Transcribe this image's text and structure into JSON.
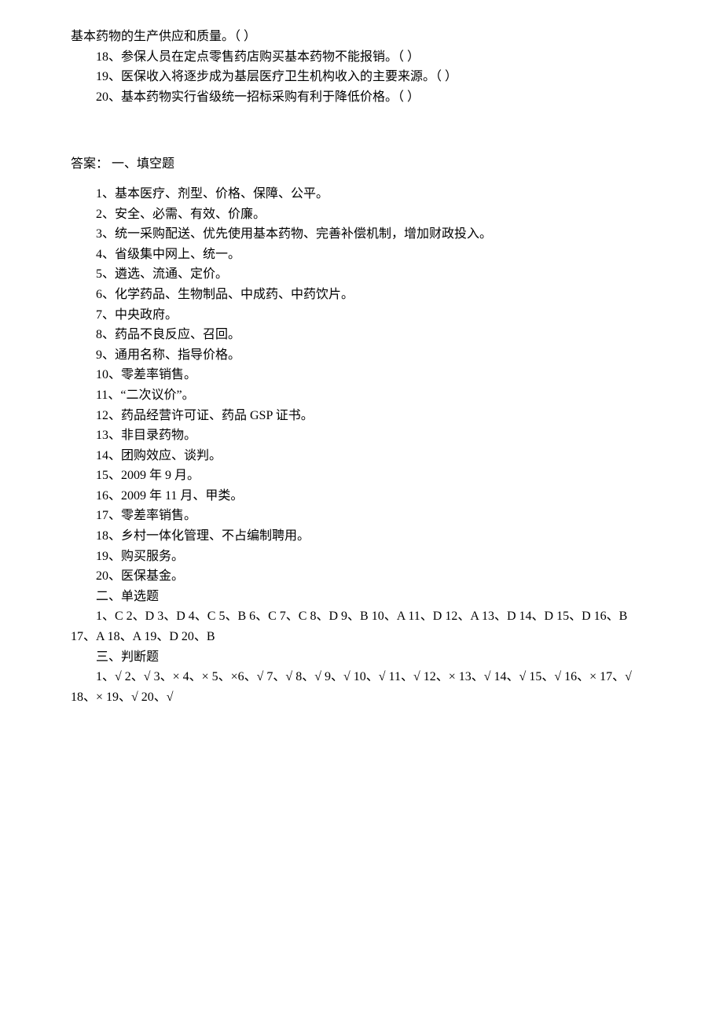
{
  "top": {
    "l0": "基本药物的生产供应和质量。（    ）",
    "l1": "18、参保人员在定点零售药店购买基本药物不能报销。（    ）",
    "l2": "19、医保收入将逐步成为基层医疗卫生机构收入的主要来源。（    ）",
    "l3": "20、基本药物实行省级统一招标采购有利于降低价格。（    ）"
  },
  "answers_heading": "答案：    一、填空题",
  "fill": {
    "a1": "1、基本医疗、剂型、价格、保障、公平。",
    "a2": "2、安全、必需、有效、价廉。",
    "a3": "3、统一采购配送、优先使用基本药物、完善补偿机制，增加财政投入。",
    "a4": "4、省级集中网上、统一。",
    "a5": "5、遴选、流通、定价。",
    "a6": "6、化学药品、生物制品、中成药、中药饮片。",
    "a7": "7、中央政府。",
    "a8": "8、药品不良反应、召回。",
    "a9": "9、通用名称、指导价格。",
    "a10": "10、零差率销售。",
    "a11": "11、“二次议价”。",
    "a12": "12、药品经营许可证、药品 GSP 证书。",
    "a13": "13、非目录药物。",
    "a14": "14、团购效应、谈判。",
    "a15": "15、2009 年 9 月。",
    "a16": "16、2009 年 11 月、甲类。",
    "a17": "17、零差率销售。",
    "a18": "18、乡村一体化管理、不占编制聘用。",
    "a19": "19、购买服务。",
    "a20": "20、医保基金。"
  },
  "section2_title": "二、单选题",
  "single": {
    "line1": "1、C 2、D 3、D 4、C 5、B 6、C 7、C 8、D 9、B 10、A 11、D 12、A 13、D 14、D 15、D 16、B",
    "line2": "17、A 18、A 19、D 20、B"
  },
  "section3_title": "三、判断题",
  "judge": {
    "line1": "1、√ 2、√ 3、× 4、× 5、×6、√ 7、√ 8、√ 9、√ 10、√ 11、√ 12、× 13、√ 14、√ 15、√ 16、× 17、√",
    "line2": "18、× 19、√ 20、√"
  }
}
